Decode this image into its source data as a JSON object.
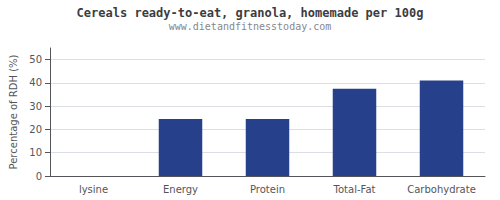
{
  "chart_data": {
    "type": "bar",
    "title": "Cereals ready-to-eat, granola, homemade per 100g",
    "subtitle": "www.dietandfitnesstoday.com",
    "categories": [
      "lysine",
      "Energy",
      "Protein",
      "Total-Fat",
      "Carbohydrate"
    ],
    "values": [
      0,
      24.5,
      24.5,
      37.5,
      41.0
    ],
    "color": "#27408B",
    "ylabel": "Percentage of RDH (%)",
    "ylim": [
      0,
      55
    ],
    "yticks": [
      0,
      10,
      20,
      30,
      40,
      50
    ],
    "grid": true
  }
}
